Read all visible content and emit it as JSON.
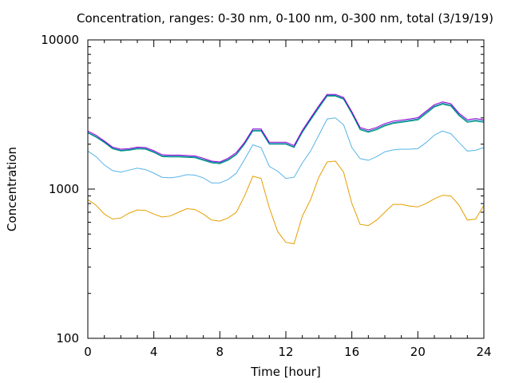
{
  "chart_data": {
    "type": "line",
    "title": "Concentration, ranges: 0-30 nm, 0-100 nm, 0-300 nm, total (3/19/19)",
    "xlabel": "Time [hour]",
    "ylabel": "Concentration",
    "xlim": [
      0,
      24
    ],
    "ylim": [
      100,
      10000
    ],
    "yscale": "log",
    "grid": false,
    "x_ticks": [
      0,
      4,
      8,
      12,
      16,
      20,
      24
    ],
    "x_tick_labels": [
      "0",
      "4",
      "8",
      "12",
      "16",
      "20",
      "24"
    ],
    "y_ticks": [
      100,
      1000,
      10000
    ],
    "y_tick_labels": [
      "100",
      "1000",
      "10000"
    ],
    "x": [
      0,
      0.5,
      1,
      1.5,
      2,
      2.5,
      3,
      3.5,
      4,
      4.5,
      5,
      5.5,
      6,
      6.5,
      7,
      7.5,
      8,
      8.5,
      9,
      9.5,
      10,
      10.5,
      11,
      11.5,
      12,
      12.5,
      13,
      13.5,
      14,
      14.5,
      15,
      15.5,
      16,
      16.5,
      17,
      17.5,
      18,
      18.5,
      19,
      19.5,
      20,
      20.5,
      21,
      21.5,
      22,
      22.5,
      23,
      23.5,
      24
    ],
    "series": [
      {
        "color": "#e69f00",
        "values": [
          850,
          780,
          680,
          630,
          640,
          690,
          725,
          720,
          680,
          650,
          660,
          700,
          740,
          730,
          680,
          620,
          610,
          640,
          700,
          900,
          1220,
          1180,
          750,
          520,
          440,
          430,
          660,
          850,
          1200,
          1520,
          1540,
          1300,
          800,
          580,
          570,
          620,
          700,
          790,
          790,
          770,
          760,
          800,
          860,
          910,
          900,
          780,
          620,
          630,
          780
        ]
      },
      {
        "color": "#56b4e9",
        "values": [
          1800,
          1650,
          1450,
          1330,
          1300,
          1340,
          1380,
          1350,
          1280,
          1200,
          1190,
          1210,
          1250,
          1240,
          1190,
          1100,
          1100,
          1160,
          1280,
          1580,
          1980,
          1900,
          1420,
          1320,
          1180,
          1200,
          1500,
          1800,
          2300,
          2950,
          3000,
          2700,
          1900,
          1600,
          1560,
          1650,
          1780,
          1830,
          1850,
          1850,
          1870,
          2050,
          2300,
          2450,
          2350,
          2050,
          1800,
          1820,
          1900
        ]
      },
      {
        "color": "#009e73",
        "values": [
          2380,
          2230,
          2050,
          1860,
          1800,
          1820,
          1860,
          1850,
          1760,
          1650,
          1640,
          1640,
          1630,
          1620,
          1560,
          1500,
          1480,
          1560,
          1700,
          2000,
          2450,
          2450,
          2000,
          2000,
          2000,
          1900,
          2400,
          2900,
          3500,
          4200,
          4200,
          4000,
          3200,
          2500,
          2400,
          2500,
          2650,
          2750,
          2800,
          2850,
          2900,
          3200,
          3550,
          3700,
          3600,
          3100,
          2800,
          2850,
          2800
        ]
      },
      {
        "color": "#0072b2",
        "values": [
          2400,
          2250,
          2070,
          1880,
          1820,
          1840,
          1880,
          1870,
          1780,
          1670,
          1660,
          1660,
          1650,
          1640,
          1580,
          1520,
          1500,
          1580,
          1720,
          2020,
          2480,
          2480,
          2020,
          2020,
          2020,
          1920,
          2430,
          2950,
          3560,
          4250,
          4250,
          4050,
          3250,
          2540,
          2440,
          2540,
          2690,
          2790,
          2840,
          2890,
          2950,
          3260,
          3600,
          3760,
          3660,
          3150,
          2850,
          2900,
          2850
        ]
      },
      {
        "color": "#9400d3",
        "values": [
          2450,
          2300,
          2100,
          1910,
          1850,
          1870,
          1910,
          1900,
          1810,
          1700,
          1690,
          1690,
          1680,
          1670,
          1610,
          1540,
          1520,
          1610,
          1760,
          2060,
          2530,
          2530,
          2060,
          2060,
          2060,
          1960,
          2480,
          3000,
          3620,
          4320,
          4320,
          4120,
          3300,
          2590,
          2490,
          2590,
          2750,
          2850,
          2900,
          2950,
          3010,
          3330,
          3680,
          3840,
          3740,
          3220,
          2920,
          2970,
          2920
        ]
      }
    ]
  }
}
